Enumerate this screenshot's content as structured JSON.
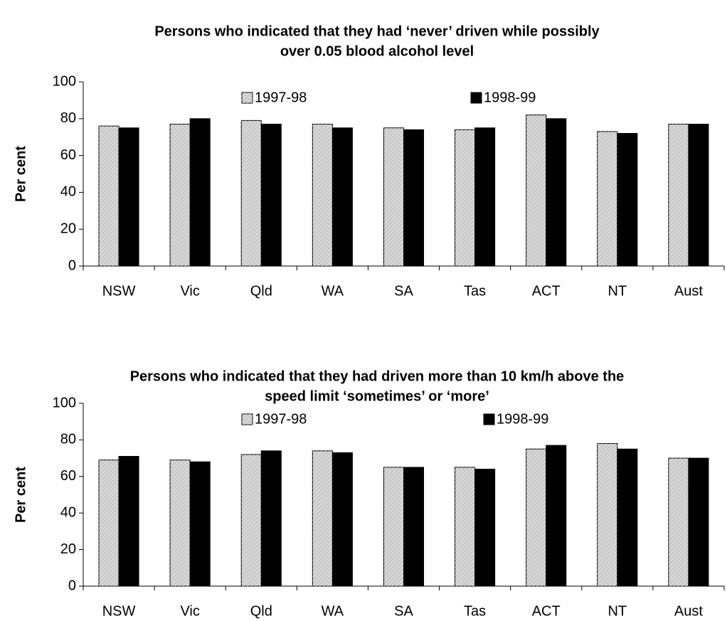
{
  "chart_data": [
    {
      "type": "bar",
      "title": [
        "Persons who indicated that they had ‘never’ driven while possibly",
        "over 0.05 blood alcohol level"
      ],
      "y_label": "Per cent",
      "categories": [
        "NSW",
        "Vic",
        "Qld",
        "WA",
        "SA",
        "Tas",
        "ACT",
        "NT",
        "Aust"
      ],
      "series": [
        {
          "name": "1997-98",
          "color": "#c8c8c8",
          "values": [
            76,
            77,
            79,
            77,
            75,
            74,
            82,
            73,
            77
          ]
        },
        {
          "name": "1998-99",
          "color": "#000000",
          "values": [
            75,
            80,
            77,
            75,
            74,
            75,
            80,
            72,
            77
          ]
        }
      ],
      "ylim": [
        0,
        100
      ],
      "yticks": [
        0,
        20,
        40,
        60,
        80,
        100
      ]
    },
    {
      "type": "bar",
      "title": [
        "Persons who indicated that they had driven more than 10 km/h above the",
        "speed limit ‘sometimes’ or ‘more’"
      ],
      "y_label": "Per cent",
      "categories": [
        "NSW",
        "Vic",
        "Qld",
        "WA",
        "SA",
        "Tas",
        "ACT",
        "NT",
        "Aust"
      ],
      "series": [
        {
          "name": "1997-98",
          "color": "#c8c8c8",
          "values": [
            69,
            69,
            72,
            74,
            65,
            65,
            75,
            78,
            70
          ]
        },
        {
          "name": "1998-99",
          "color": "#000000",
          "values": [
            71,
            68,
            74,
            73,
            65,
            64,
            77,
            75,
            70
          ]
        }
      ],
      "ylim": [
        0,
        100
      ],
      "yticks": [
        0,
        20,
        40,
        60,
        80,
        100
      ]
    }
  ]
}
